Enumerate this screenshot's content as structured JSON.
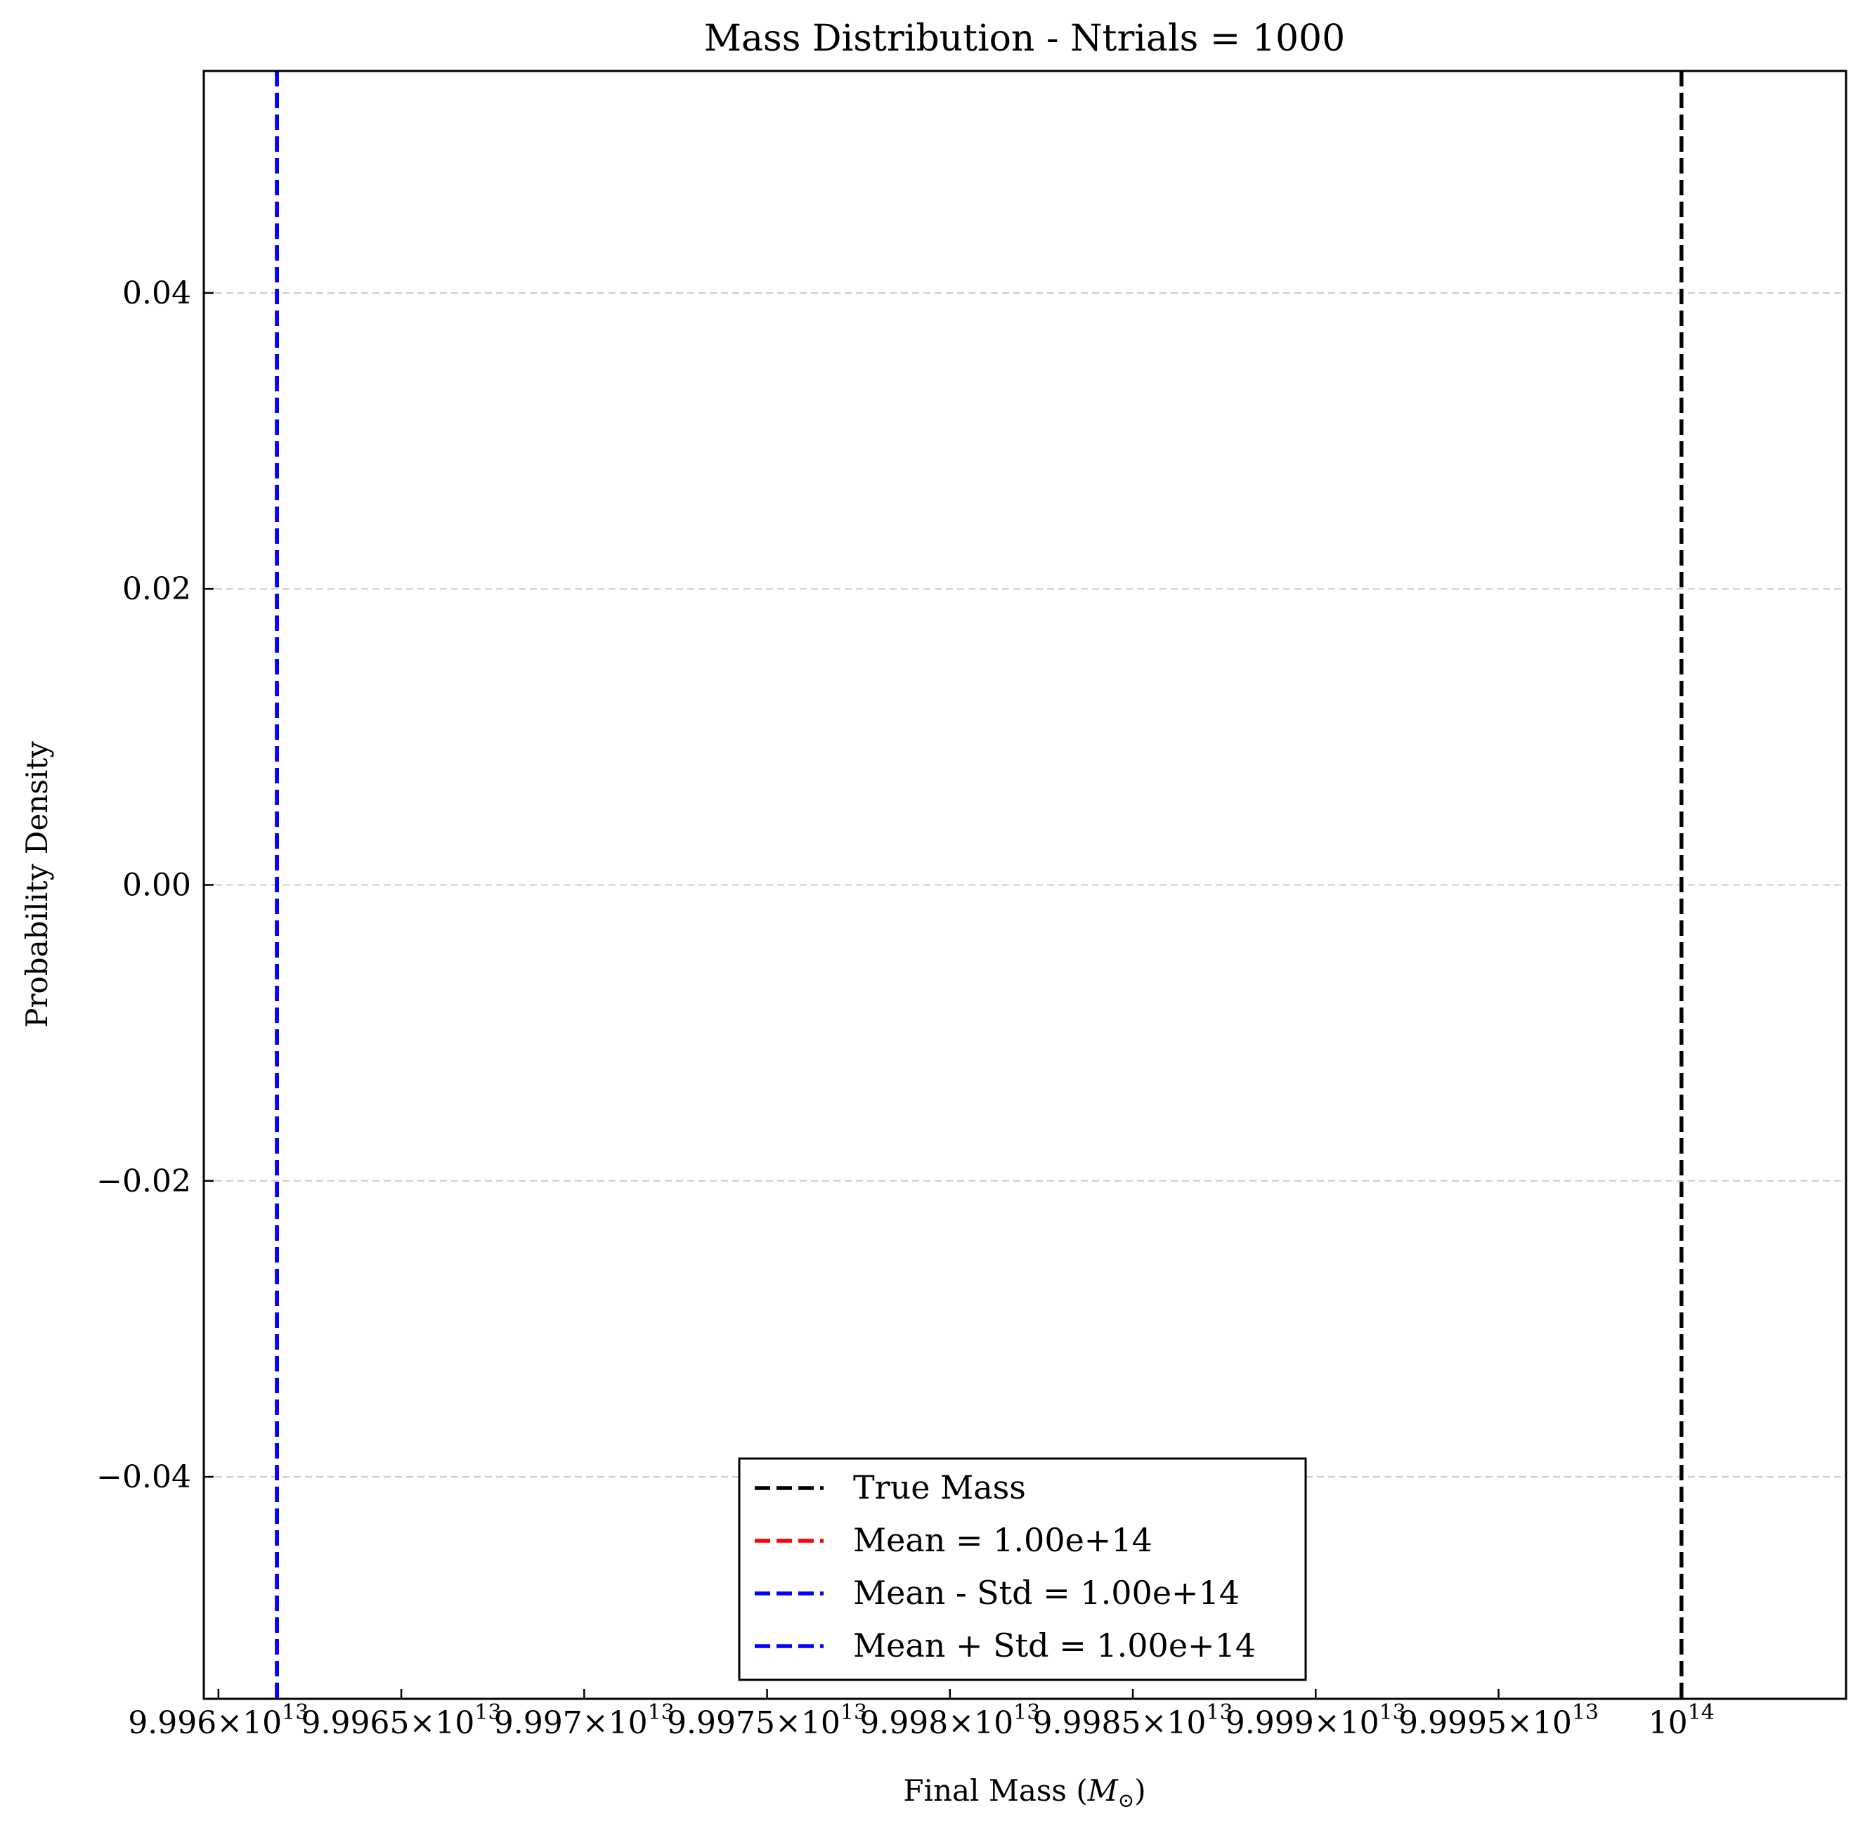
{
  "chart_data": {
    "type": "line",
    "title": "Mass Distribution - Ntrials = 1000",
    "xlabel": "Final Mass (",
    "xlabel_symbol": "M",
    "xlabel_subscript": "⊙",
    "xlabel_close": ")",
    "ylabel": "Probability Density",
    "xlim": [
      99959600000000,
      100004500000000
    ],
    "ylim": [
      -0.055,
      0.055
    ],
    "grid": "y-dashed",
    "x_ticks": [
      {
        "value": 99960000000000,
        "mantissa": "9.996",
        "exponent": "13"
      },
      {
        "value": 99965000000000,
        "mantissa": "9.9965",
        "exponent": "13"
      },
      {
        "value": 99970000000000,
        "mantissa": "9.997",
        "exponent": "13"
      },
      {
        "value": 99975000000000,
        "mantissa": "9.9975",
        "exponent": "13"
      },
      {
        "value": 99980000000000,
        "mantissa": "9.998",
        "exponent": "13"
      },
      {
        "value": 99985000000000,
        "mantissa": "9.9985",
        "exponent": "13"
      },
      {
        "value": 99990000000000,
        "mantissa": "9.999",
        "exponent": "13"
      },
      {
        "value": 99995000000000,
        "mantissa": "9.9995",
        "exponent": "13"
      },
      {
        "value": 100000000000000,
        "mantissa": "",
        "exponent": "14"
      }
    ],
    "y_ticks": [
      {
        "value": 0.04,
        "label": "0.04"
      },
      {
        "value": 0.02,
        "label": "0.02"
      },
      {
        "value": 0.0,
        "label": "0.00"
      },
      {
        "value": -0.02,
        "label": "−0.02"
      },
      {
        "value": -0.04,
        "label": "−0.04"
      }
    ],
    "series": [
      {
        "name": "True Mass",
        "x": 100000000000000,
        "color": "#000000",
        "style": "dashed-vline"
      },
      {
        "name": "Mean = 1.00e+14",
        "x": 99961600000000,
        "color": "#ff0000",
        "style": "dashed-vline"
      },
      {
        "name": "Mean - Std = 1.00e+14",
        "x": 99961600000000,
        "color": "#0000ff",
        "style": "dashed-vline"
      },
      {
        "name": "Mean + Std = 1.00e+14",
        "x": 99961600000000,
        "color": "#0000ff",
        "style": "dashed-vline"
      }
    ],
    "legend_position": "lower-center"
  }
}
